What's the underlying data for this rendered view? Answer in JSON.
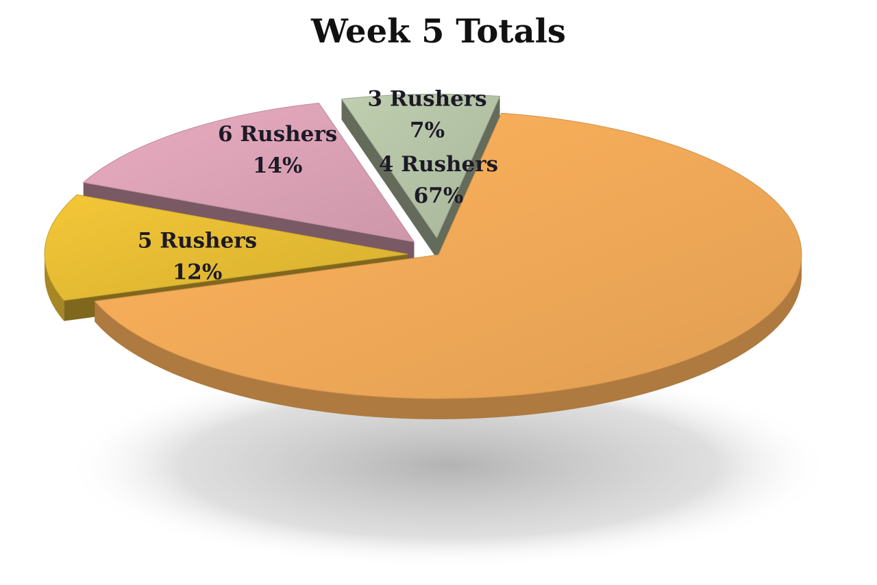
{
  "chart_data": {
    "type": "pie",
    "title": "Week 5 Totals",
    "slices": [
      {
        "label": "4 Rushers",
        "value": 67,
        "value_label": "67%",
        "color": "#f2aa58"
      },
      {
        "label": "5 Rushers",
        "value": 12,
        "value_label": "12%",
        "color": "#e6bc34"
      },
      {
        "label": "6 Rushers",
        "value": 14,
        "value_label": "14%",
        "color": "#dca2b6"
      },
      {
        "label": "3 Rushers",
        "value": 7,
        "value_label": "7%",
        "color": "#b5c3a6"
      }
    ],
    "style": "3d-exploded",
    "legend": "none"
  }
}
